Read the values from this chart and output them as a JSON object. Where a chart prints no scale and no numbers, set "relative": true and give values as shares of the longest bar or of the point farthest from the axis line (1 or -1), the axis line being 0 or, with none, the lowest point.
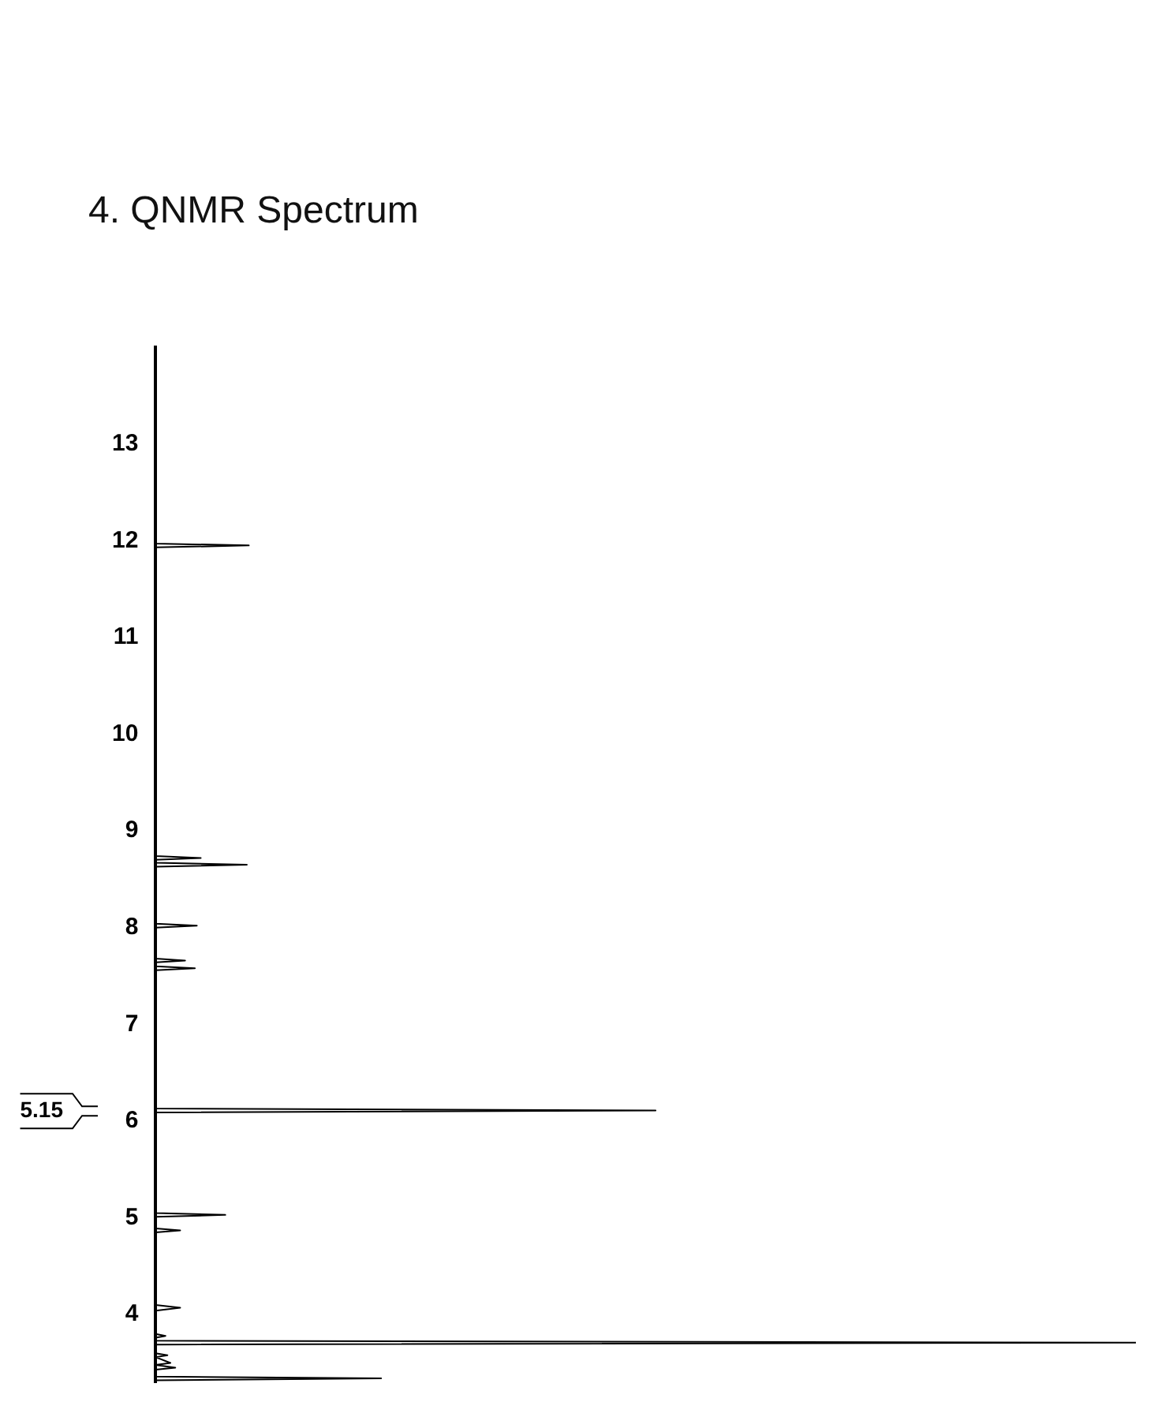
{
  "chart_data": {
    "type": "line",
    "title": "4. QNMR Spectrum",
    "orientation": "horizontal",
    "relative": true,
    "x": [
      14,
      11.97,
      11.95,
      11.93,
      8.74,
      8.72,
      8.7,
      8.67,
      8.65,
      8.63,
      8.04,
      8.02,
      8.0,
      7.68,
      7.66,
      7.64,
      7.6,
      7.58,
      7.56,
      6.13,
      6.11,
      6.09,
      5.05,
      5.03,
      5.01,
      4.89,
      4.87,
      4.85,
      4.1,
      4.07,
      4.04,
      3.8,
      3.78,
      3.76,
      3.73,
      3.71,
      3.69,
      3.6,
      3.58,
      3.56,
      3.5,
      3.48,
      3.45,
      3.43,
      3.36,
      3.34,
      3.32,
      3.3
    ],
    "series": [
      {
        "color": "#000000",
        "values": [
          0,
          0,
          0.095,
          0,
          0,
          0.046,
          0,
          0,
          0.093,
          0,
          0,
          0.042,
          0,
          0,
          0.03,
          0,
          0,
          0.04,
          0,
          0,
          0.51,
          0,
          0,
          0.071,
          0,
          0,
          0.025,
          0,
          0,
          0.025,
          0,
          0,
          0.01,
          0,
          0,
          1,
          0,
          0,
          0.012,
          0,
          0.015,
          0,
          0.02,
          0,
          0,
          0.23,
          0,
          0
        ]
      }
    ],
    "ylim": [
      3.3,
      14
    ],
    "yticks": [
      4,
      5,
      6,
      7,
      8,
      9,
      10,
      11,
      12,
      13
    ],
    "annotations": [
      "5.15"
    ],
    "grid": false,
    "legend": false,
    "marker": "none",
    "line_style": "solid"
  }
}
